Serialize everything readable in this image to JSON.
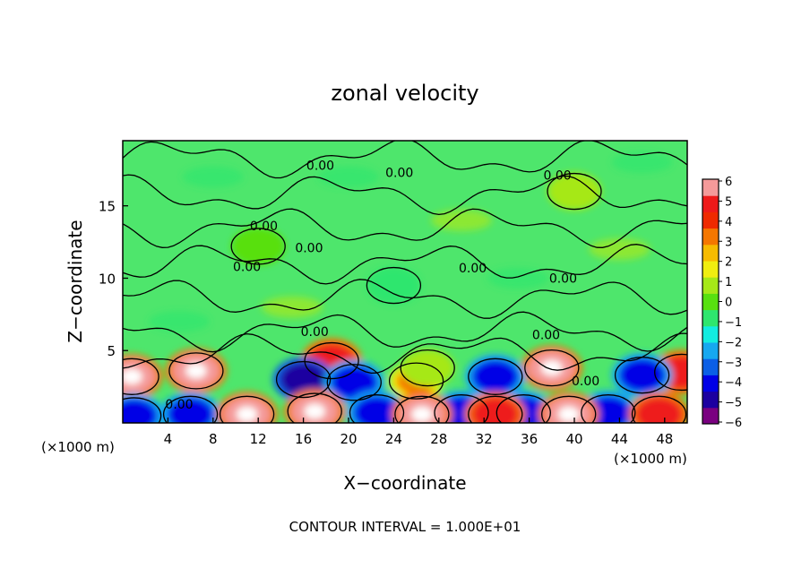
{
  "chart_data": {
    "type": "heatmap",
    "title": "zonal velocity",
    "xlabel": "X−coordinate",
    "ylabel": "Z−coordinate",
    "x_unit_left": "(×1000 m)",
    "x_unit_right": "(×1000 m)",
    "footer": "CONTOUR INTERVAL = 1.000E+01",
    "xlim": [
      0,
      50
    ],
    "ylim": [
      0,
      19.5
    ],
    "x_ticks": [
      "4",
      "8",
      "12",
      "16",
      "20",
      "24",
      "28",
      "32",
      "36",
      "40",
      "44",
      "48"
    ],
    "y_ticks": [
      "5",
      "10",
      "15"
    ],
    "contour_label": "0.00",
    "colorbar": {
      "range": [
        -6,
        6
      ],
      "ticks": [
        "6",
        "5",
        "4",
        "3",
        "2",
        "1",
        "0",
        "−1",
        "−2",
        "−3",
        "−4",
        "−5",
        "−6"
      ],
      "colors": [
        "#7a0080",
        "#1c00a0",
        "#0000e6",
        "#0b5fe6",
        "#16a8f0",
        "#12ece0",
        "#2ee66e",
        "#58e010",
        "#a6e818",
        "#f0ee10",
        "#f7bb00",
        "#f57700",
        "#ef2a00",
        "#ee1a1a",
        "#f49a9a"
      ]
    },
    "features": [
      {
        "x": 0.8,
        "z": 3.2,
        "value": 6
      },
      {
        "x": 6.5,
        "z": 3.6,
        "value": 6
      },
      {
        "x": 18.5,
        "z": 4.3,
        "value": 5
      },
      {
        "x": 26.0,
        "z": 2.9,
        "value": 3
      },
      {
        "x": 38.0,
        "z": 3.8,
        "value": 6
      },
      {
        "x": 49.5,
        "z": 3.5,
        "value": 5
      },
      {
        "x": 16.0,
        "z": 3.0,
        "value": -5
      },
      {
        "x": 20.5,
        "z": 2.8,
        "value": -4
      },
      {
        "x": 33.0,
        "z": 3.2,
        "value": -4
      },
      {
        "x": 46.0,
        "z": 3.3,
        "value": -4
      },
      {
        "x": 1.0,
        "z": 0.5,
        "value": -4
      },
      {
        "x": 6.0,
        "z": 0.6,
        "value": -4
      },
      {
        "x": 22.5,
        "z": 0.7,
        "value": -4
      },
      {
        "x": 30.0,
        "z": 0.7,
        "value": -4
      },
      {
        "x": 35.5,
        "z": 0.7,
        "value": -4
      },
      {
        "x": 43.0,
        "z": 0.7,
        "value": -4
      },
      {
        "x": 11.0,
        "z": 0.6,
        "value": 6
      },
      {
        "x": 17.0,
        "z": 0.8,
        "value": 6
      },
      {
        "x": 26.5,
        "z": 0.6,
        "value": 6
      },
      {
        "x": 33.0,
        "z": 0.6,
        "value": 5
      },
      {
        "x": 39.5,
        "z": 0.6,
        "value": 6
      },
      {
        "x": 47.5,
        "z": 0.6,
        "value": 5
      },
      {
        "x": 12.0,
        "z": 12.2,
        "value": 0
      },
      {
        "x": 27.0,
        "z": 3.8,
        "value": 1
      },
      {
        "x": 24.0,
        "z": 9.5,
        "value": -1
      },
      {
        "x": 40.0,
        "z": 16.0,
        "value": 1
      }
    ]
  }
}
